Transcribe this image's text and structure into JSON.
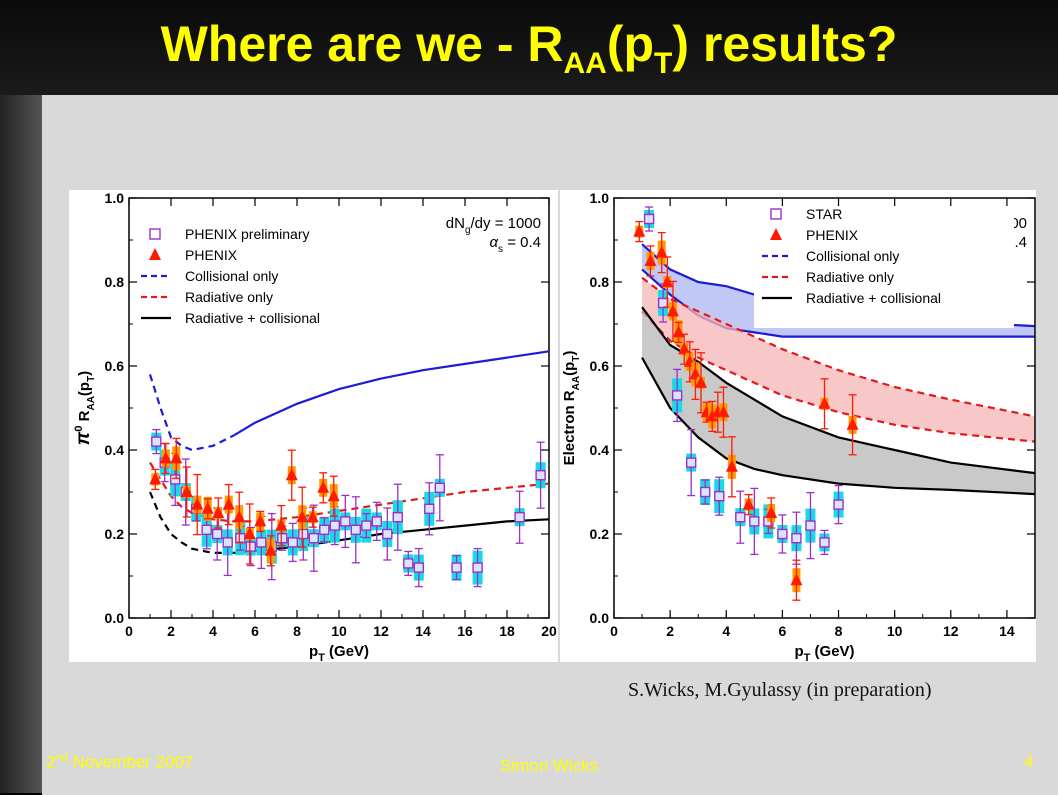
{
  "slide": {
    "title_main": "Where are we - R",
    "title_sub1": "AA",
    "title_mid": "(p",
    "title_sub2": "T",
    "title_end": ") results?",
    "citation": "S.Wicks, M.Gyulassy (in preparation)",
    "date_prefix": "2",
    "date_sup": "nd",
    "date_rest": " November 2007",
    "author": "Simon Wicks",
    "page_number": "4"
  },
  "colors": {
    "title": "#ffff00",
    "collisional": "#1c1cd6",
    "radiative": "#e01a1a",
    "combined": "#000000",
    "phenix": "#ff1a00",
    "preliminary": "#9b30c8",
    "cyan_band": "#19d9e6",
    "orange_band": "#ff9900"
  },
  "chart_data": [
    {
      "type": "scatter",
      "xlabel": "pT (GeV)",
      "ylabel": "π0 RAA(pT)",
      "xlim": [
        0,
        20
      ],
      "ylim": [
        0,
        1.0
      ],
      "xticks": [
        0,
        2,
        4,
        6,
        8,
        10,
        12,
        14,
        16,
        18,
        20
      ],
      "yticks": [
        0.0,
        0.2,
        0.4,
        0.6,
        0.8,
        1.0
      ],
      "annotation": [
        "dN",
        "g",
        "/dy = 1000",
        "α",
        "s",
        " = 0.4"
      ],
      "legend": [
        "PHENIX preliminary",
        "PHENIX",
        "Collisional only",
        "Radiative only",
        "Radiative + collisional"
      ],
      "series": [
        {
          "name": "Collisional only",
          "style": "dashed-to-solid",
          "color": "#1c1cd6",
          "x": [
            1,
            1.5,
            2,
            2.5,
            3,
            4,
            5,
            6,
            8,
            10,
            12,
            14,
            16,
            18,
            20
          ],
          "y": [
            0.58,
            0.5,
            0.43,
            0.41,
            0.4,
            0.41,
            0.435,
            0.465,
            0.51,
            0.545,
            0.57,
            0.59,
            0.605,
            0.62,
            0.635
          ]
        },
        {
          "name": "Radiative only",
          "style": "dashed",
          "color": "#e01a1a",
          "x": [
            1,
            1.5,
            2,
            2.5,
            3,
            4,
            5,
            6,
            8,
            10,
            12,
            14,
            16,
            18,
            20
          ],
          "y": [
            0.37,
            0.33,
            0.29,
            0.265,
            0.25,
            0.235,
            0.23,
            0.23,
            0.24,
            0.255,
            0.27,
            0.285,
            0.3,
            0.31,
            0.32
          ]
        },
        {
          "name": "Radiative + collisional",
          "style": "dashed-to-solid",
          "color": "#000000",
          "x": [
            1,
            1.5,
            2,
            2.5,
            3,
            4,
            5,
            6,
            8,
            10,
            12,
            14,
            16,
            18,
            20
          ],
          "y": [
            0.3,
            0.24,
            0.2,
            0.18,
            0.165,
            0.155,
            0.155,
            0.16,
            0.17,
            0.185,
            0.2,
            0.21,
            0.22,
            0.23,
            0.235
          ]
        },
        {
          "name": "PHENIX preliminary",
          "marker": "open-square",
          "color": "#9b30c8",
          "x": [
            1.3,
            1.7,
            2.2,
            2.7,
            3.2,
            3.7,
            4.2,
            4.7,
            5.3,
            5.8,
            6.3,
            6.8,
            7.3,
            7.8,
            8.3,
            8.8,
            9.3,
            9.8,
            10.3,
            10.8,
            11.3,
            11.8,
            12.3,
            12.8,
            13.3,
            13.8,
            14.3,
            14.8,
            15.6,
            16.6,
            18.6,
            19.6
          ],
          "y": [
            0.42,
            0.37,
            0.33,
            0.3,
            0.26,
            0.21,
            0.2,
            0.18,
            0.19,
            0.17,
            0.18,
            0.17,
            0.19,
            0.18,
            0.2,
            0.19,
            0.21,
            0.22,
            0.23,
            0.21,
            0.22,
            0.23,
            0.2,
            0.24,
            0.13,
            0.12,
            0.26,
            0.31,
            0.12,
            0.12,
            0.24,
            0.34
          ]
        },
        {
          "name": "PHENIX",
          "marker": "filled-triangle",
          "color": "#ff1a00",
          "x": [
            1.25,
            1.75,
            2.25,
            2.75,
            3.25,
            3.75,
            4.25,
            4.75,
            5.25,
            5.75,
            6.25,
            6.75,
            7.25,
            7.75,
            8.25,
            8.75,
            9.25,
            9.75
          ],
          "y": [
            0.33,
            0.38,
            0.38,
            0.3,
            0.27,
            0.26,
            0.25,
            0.27,
            0.24,
            0.2,
            0.23,
            0.16,
            0.22,
            0.34,
            0.24,
            0.24,
            0.31,
            0.29
          ]
        }
      ]
    },
    {
      "type": "scatter",
      "xlabel": "pT (GeV)",
      "ylabel": "Electron RAA(pT)",
      "xlim": [
        0,
        15
      ],
      "ylim": [
        0,
        1.0
      ],
      "xticks": [
        0,
        2,
        4,
        6,
        8,
        10,
        12,
        14
      ],
      "yticks": [
        0.0,
        0.2,
        0.4,
        0.6,
        0.8,
        1.0
      ],
      "annotation": [
        "dN",
        "g",
        "/dy=1000",
        "α",
        "s",
        " = 0.4"
      ],
      "legend": [
        "STAR",
        "PHENIX",
        "Collisional only",
        "Radiative only",
        "Radiative + collisional"
      ],
      "bands": [
        {
          "name": "Collisional only",
          "color": "#1c1cd6",
          "fill": "#aeb5f2",
          "x": [
            1,
            2,
            3,
            4,
            5,
            6,
            8,
            10,
            12,
            15
          ],
          "upper": [
            0.89,
            0.83,
            0.8,
            0.79,
            0.77,
            0.75,
            0.72,
            0.71,
            0.705,
            0.695
          ],
          "lower": [
            0.83,
            0.77,
            0.72,
            0.69,
            0.68,
            0.67,
            0.67,
            0.67,
            0.67,
            0.67
          ]
        },
        {
          "name": "Radiative only",
          "color": "#e01a1a",
          "fill": "#f6b5b5",
          "x": [
            1,
            2,
            3,
            4,
            5,
            6,
            8,
            10,
            12,
            15
          ],
          "upper": [
            0.81,
            0.76,
            0.73,
            0.7,
            0.67,
            0.64,
            0.59,
            0.55,
            0.52,
            0.48
          ],
          "lower": [
            0.73,
            0.66,
            0.62,
            0.59,
            0.56,
            0.53,
            0.49,
            0.46,
            0.44,
            0.42
          ]
        },
        {
          "name": "Radiative + collisional",
          "color": "#000000",
          "fill": "#b7b7b7",
          "x": [
            1,
            2,
            3,
            4,
            5,
            6,
            8,
            10,
            12,
            15
          ],
          "upper": [
            0.74,
            0.65,
            0.61,
            0.56,
            0.52,
            0.48,
            0.43,
            0.4,
            0.37,
            0.345
          ],
          "lower": [
            0.62,
            0.5,
            0.43,
            0.38,
            0.355,
            0.34,
            0.32,
            0.31,
            0.305,
            0.295
          ]
        }
      ],
      "series": [
        {
          "name": "STAR",
          "marker": "open-square",
          "color": "#9b30c8",
          "x": [
            1.25,
            1.75,
            2.25,
            2.75,
            3.25,
            3.75,
            4.5,
            5,
            5.5,
            6,
            6.5,
            7,
            7.5,
            8
          ],
          "y": [
            0.95,
            0.75,
            0.53,
            0.37,
            0.3,
            0.29,
            0.24,
            0.23,
            0.23,
            0.2,
            0.19,
            0.22,
            0.18,
            0.27
          ]
        },
        {
          "name": "PHENIX",
          "marker": "filled-triangle",
          "color": "#ff1a00",
          "x": [
            0.9,
            1.3,
            1.7,
            1.9,
            2.1,
            2.3,
            2.5,
            2.7,
            2.9,
            3.1,
            3.3,
            3.5,
            3.7,
            3.9,
            4.2,
            4.8,
            5.6,
            6.5,
            7.5,
            8.5
          ],
          "y": [
            0.92,
            0.85,
            0.87,
            0.8,
            0.73,
            0.68,
            0.64,
            0.61,
            0.58,
            0.56,
            0.49,
            0.48,
            0.49,
            0.49,
            0.36,
            0.27,
            0.25,
            0.09,
            0.51,
            0.46
          ]
        }
      ]
    }
  ]
}
